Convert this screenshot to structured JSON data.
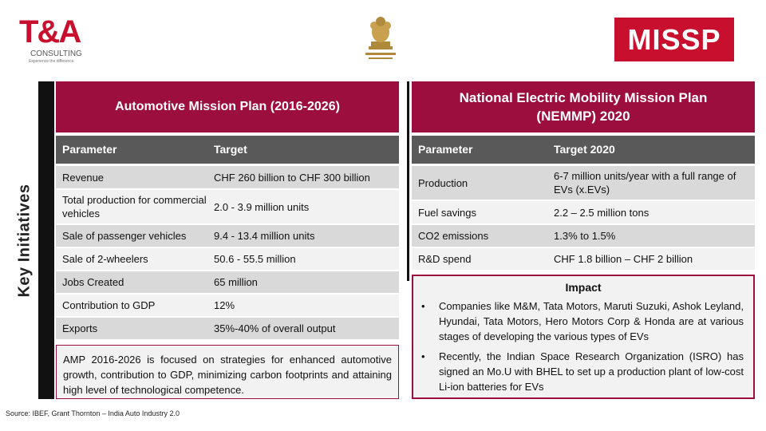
{
  "logos": {
    "ta_text": "T&A",
    "ta_sub": "CONSULTING",
    "ta_tagline": "Experience the difference",
    "missp_text": "MISSP"
  },
  "side_label": "Key Initiatives",
  "amp": {
    "title": "Automotive Mission Plan (2016-2026)",
    "headers": [
      "Parameter",
      "Target"
    ],
    "rows": [
      [
        "Revenue",
        "CHF 260 billion to CHF 300 billion"
      ],
      [
        "Total production for commercial vehicles",
        "2.0 - 3.9 million units"
      ],
      [
        "Sale of passenger vehicles",
        "9.4 - 13.4 million units"
      ],
      [
        "Sale of 2-wheelers",
        "50.6 - 55.5 million"
      ],
      [
        "Jobs Created",
        "65 million"
      ],
      [
        "Contribution to GDP",
        "12%"
      ],
      [
        "Exports",
        "35%-40% of overall output"
      ]
    ],
    "note": "AMP 2016-2026 is focused on strategies for enhanced automotive growth, contribution to GDP, minimizing carbon footprints and attaining high level of technological competence."
  },
  "nemmp": {
    "title": "National Electric Mobility Mission Plan (NEMMP) 2020",
    "headers": [
      "Parameter",
      "Target 2020"
    ],
    "rows": [
      [
        "Production",
        "6-7 million units/year with a full range of EVs (x.EVs)"
      ],
      [
        "Fuel savings",
        "2.2 – 2.5 million tons"
      ],
      [
        "CO2 emissions",
        "1.3% to 1.5%"
      ],
      [
        "R&D spend",
        "CHF 1.8 billion – CHF 2 billion"
      ]
    ]
  },
  "impact": {
    "title": "Impact",
    "bullets": [
      "Companies like M&M, Tata Motors, Maruti Suzuki, Ashok Leyland, Hyundai, Tata Motors, Hero Motors Corp & Honda are at various stages of developing the various types of EVs",
      "Recently, the Indian Space Research Organization (ISRO) has signed an Mo.U with BHEL to set up a production plant of low-cost Li-ion batteries for EVs"
    ]
  },
  "source": "Source: IBEF, Grant Thornton – India Auto Industry 2.0",
  "colors": {
    "accent": "#9b0e3e",
    "header_gray": "#595959",
    "row_gray": "#d9d9d9",
    "row_light": "#f2f2f2"
  }
}
